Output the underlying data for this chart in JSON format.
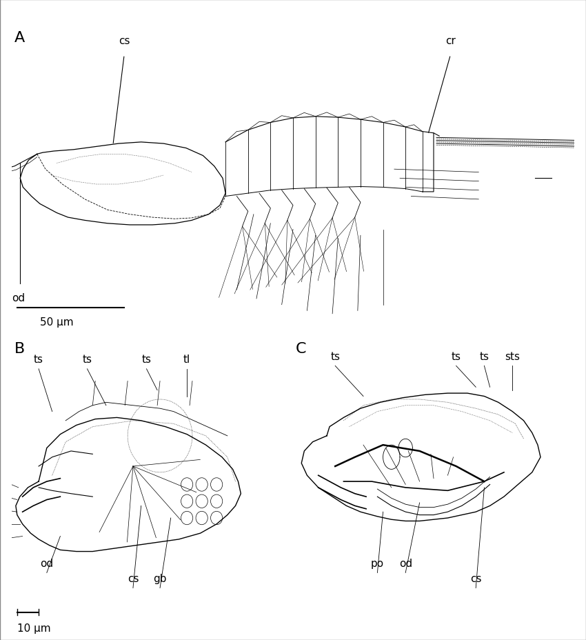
{
  "figure_width": 8.5,
  "figure_height": 9.29,
  "background_color": "#ffffff",
  "panel_A_label": "A",
  "panel_B_label": "B",
  "panel_C_label": "C",
  "scale_A_text": "50 μm",
  "scale_B_text": "10 μm",
  "font_size_label": 16,
  "font_size_annotation": 11,
  "font_size_scale": 11,
  "line_color": "#000000"
}
